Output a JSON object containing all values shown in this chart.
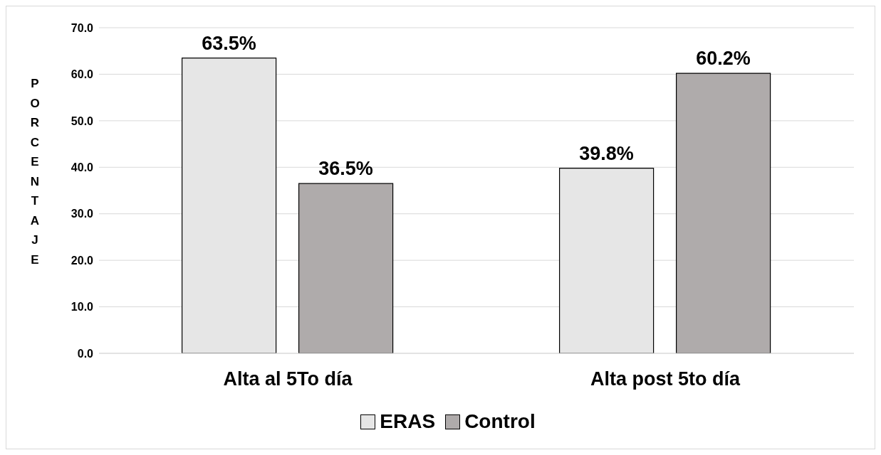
{
  "chart_data": {
    "type": "bar",
    "ylabel": "PORCENTAJE",
    "categories": [
      "Alta al 5To día",
      "Alta post 5to día"
    ],
    "series": [
      {
        "name": "ERAS",
        "color": "#e6e6e6",
        "values": [
          63.5,
          39.8
        ],
        "value_labels": [
          "63.5%",
          "39.8%"
        ]
      },
      {
        "name": "Control",
        "color": "#afabab",
        "values": [
          36.5,
          60.2
        ],
        "value_labels": [
          "36.5%",
          "60.2%"
        ]
      }
    ],
    "ylim": [
      0,
      70
    ],
    "yticks": [
      {
        "value": 0,
        "label": "0.0"
      },
      {
        "value": 10,
        "label": "10.0"
      },
      {
        "value": 20,
        "label": "20.0"
      },
      {
        "value": 30,
        "label": "30.0"
      },
      {
        "value": 40,
        "label": "40.0"
      },
      {
        "value": 50,
        "label": "50.0"
      },
      {
        "value": 60,
        "label": "60.0"
      },
      {
        "value": 70,
        "label": "70.0"
      }
    ],
    "grid": "y",
    "legend": "bottom"
  }
}
